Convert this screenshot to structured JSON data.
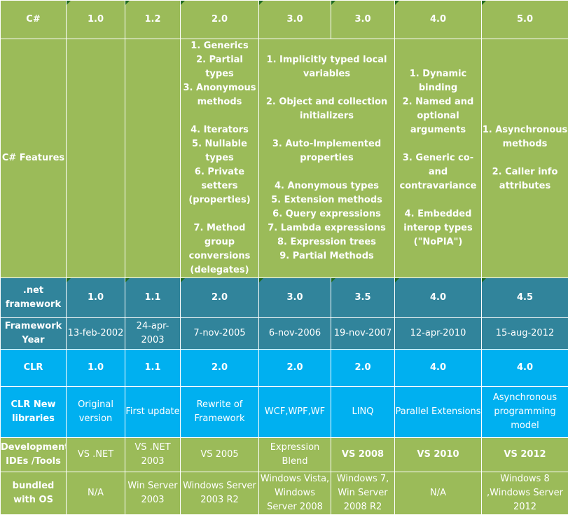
{
  "row_csharp": {
    "label": "C#",
    "versions": [
      "1.0",
      "1.2",
      "2.0",
      "3.0",
      "3.0",
      "4.0",
      "5.0"
    ]
  },
  "row_features": {
    "label": "C# Features",
    "cells": [
      "",
      "",
      "1. Generics\n2. Partial types\n3. Anonymous methods\n\n4. Iterators\n5. Nullable types\n6. Private setters (properties)\n\n7. Method group conversions (delegates)",
      "1. Implicitly typed local variables\n\n2. Object and collection initializers\n\n3. Auto-Implemented properties\n\n4. Anonymous types\n5. Extension methods\n6. Query expressions\n7. Lambda expressions\n8. Expression trees\n9. Partial Methods",
      "1. Dynamic binding\n2. Named and optional arguments\n\n3. Generic co- and contravariance\n\n4. Embedded interop types (\"NoPIA\")",
      "1. Asynchronous methods\n\n2. Caller info attributes"
    ]
  },
  "row_net": {
    "label": ".net framework",
    "versions": [
      "1.0",
      "1.1",
      "2.0",
      "3.0",
      "3.5",
      "4.0",
      "4.5"
    ]
  },
  "row_year": {
    "label": "Framework Year",
    "dates": [
      "13-feb-2002",
      "24-apr-2003",
      "7-nov-2005",
      "6-nov-2006",
      "19-nov-2007",
      "12-apr-2010",
      "15-aug-2012"
    ]
  },
  "row_clr": {
    "label": "CLR",
    "versions": [
      "1.0",
      "1.1",
      "2.0",
      "2.0",
      "2.0",
      "4.0",
      "4.0"
    ]
  },
  "row_libs": {
    "label": "CLR New libraries",
    "items": [
      "Original version",
      "First update",
      "Rewrite of Framework",
      "WCF,WPF,WF",
      "LINQ",
      "Parallel Extensions",
      "Asynchronous programming model"
    ]
  },
  "row_ides": {
    "label": "Development IDEs /Tools",
    "items": [
      "VS .NET",
      "VS .NET 2003",
      "VS 2005",
      "Expression Blend",
      "VS 2008",
      "VS 2010",
      "VS 2012"
    ]
  },
  "row_os": {
    "label": "bundled with OS",
    "items": [
      "N/A",
      "Win Server 2003",
      "Windows Server 2003 R2",
      "Windows Vista, Windows Server 2008",
      "Windows 7, Win Server 2008 R2",
      "N/A",
      "Windows 8 ,Windows Server 2012"
    ]
  },
  "colors": {
    "green": "#9bbb59",
    "teal": "#31849b",
    "cyan": "#00b0f0",
    "text": "#ffffff"
  }
}
